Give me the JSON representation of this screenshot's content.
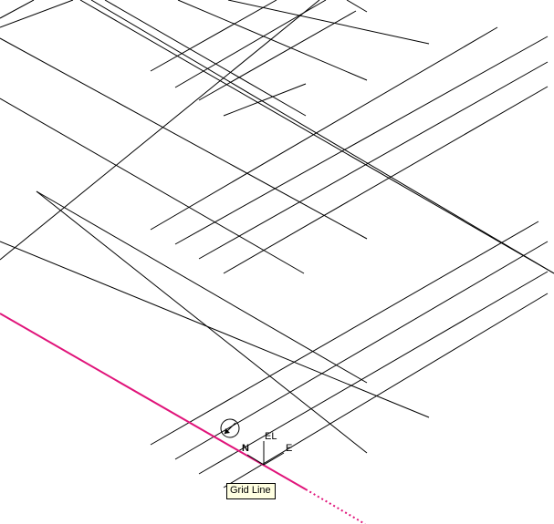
{
  "viewport": {
    "background_color": "#ffffff",
    "grid_line_color": "#000000",
    "highlight_line_color": "#e0147a"
  },
  "cursor": {
    "axis_labels": {
      "elevation": "EL",
      "north": "N",
      "east": "E"
    },
    "snap_icon": "snap-target-icon"
  },
  "tooltip": {
    "text": "Grid Line",
    "background_color": "#ffffe1"
  }
}
